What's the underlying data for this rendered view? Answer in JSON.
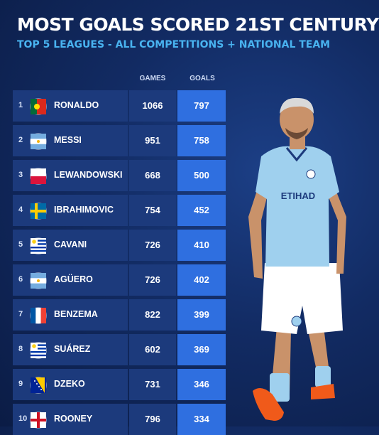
{
  "title": "MOST GOALS SCORED 21ST CENTURY",
  "subtitle": "TOP 5 LEAGUES - ALL COMPETITIONS + NATIONAL TEAM",
  "columns": {
    "games": "GAMES",
    "goals": "GOALS"
  },
  "rows": [
    {
      "rank": "1",
      "name": "RONALDO",
      "games": "1066",
      "goals": "797",
      "flag": "portugal-flag-icon"
    },
    {
      "rank": "2",
      "name": "MESSI",
      "games": "951",
      "goals": "758",
      "flag": "argentina-flag-icon"
    },
    {
      "rank": "3",
      "name": "LEWANDOWSKI",
      "games": "668",
      "goals": "500",
      "flag": "poland-flag-icon"
    },
    {
      "rank": "4",
      "name": "IBRAHIMOVIC",
      "games": "754",
      "goals": "452",
      "flag": "sweden-flag-icon"
    },
    {
      "rank": "5",
      "name": "CAVANI",
      "games": "726",
      "goals": "410",
      "flag": "uruguay-flag-icon"
    },
    {
      "rank": "6",
      "name": "AGÜERO",
      "games": "726",
      "goals": "402",
      "flag": "argentina-flag-icon"
    },
    {
      "rank": "7",
      "name": "BENZEMA",
      "games": "822",
      "goals": "399",
      "flag": "france-flag-icon"
    },
    {
      "rank": "8",
      "name": "SUÁREZ",
      "games": "602",
      "goals": "369",
      "flag": "uruguay-flag-icon"
    },
    {
      "rank": "9",
      "name": "DZEKO",
      "games": "731",
      "goals": "346",
      "flag": "bosnia-flag-icon"
    },
    {
      "rank": "10",
      "name": "ROONEY",
      "games": "796",
      "goals": "334",
      "flag": "england-flag-icon"
    }
  ],
  "player": {
    "sponsor": "ETIHAD",
    "image": "footballer-photo",
    "colors": {
      "shirt": "#9fd0ee",
      "shorts": "#ffffff",
      "socks": "#9fd0ee",
      "boots": "#f05a1a"
    }
  },
  "colors": {
    "background": "#122b63",
    "row": "#1c3a7c",
    "goals_cell": "#2f6fe0",
    "subtitle": "#49b3f0"
  }
}
